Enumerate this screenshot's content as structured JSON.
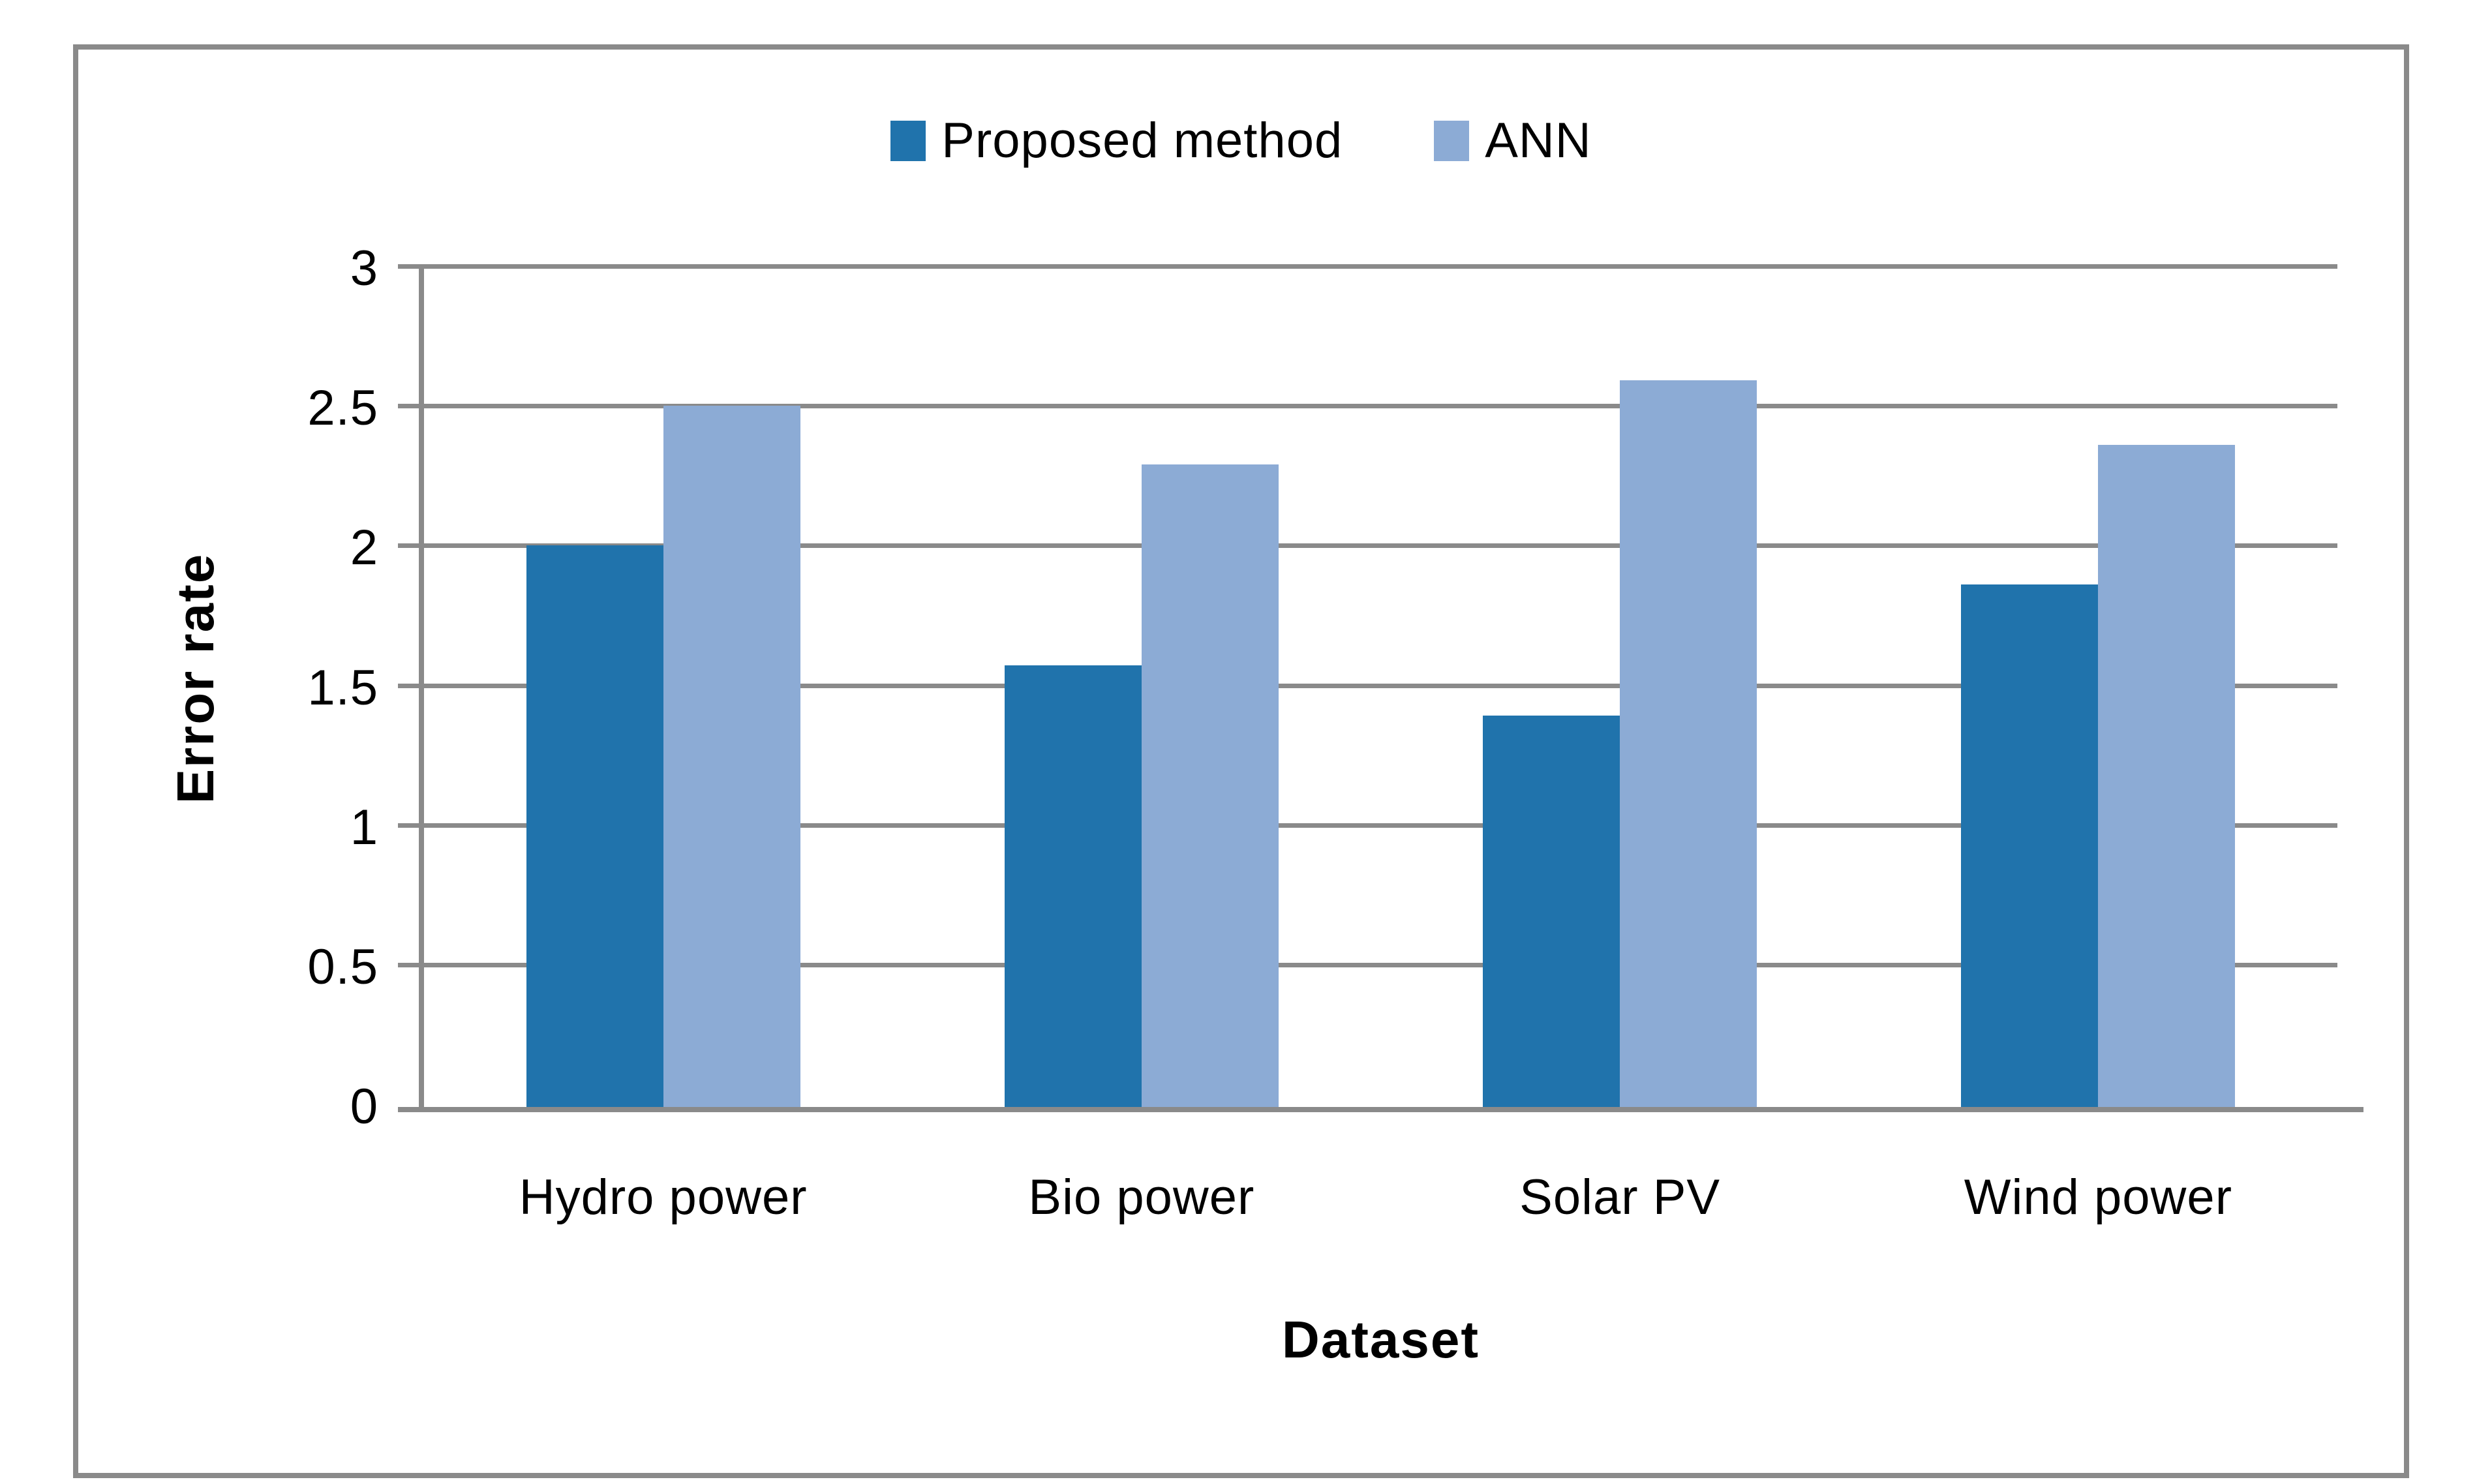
{
  "chart_data": {
    "type": "bar",
    "title": "",
    "categories": [
      "Hydro power",
      "Bio power",
      "Solar PV",
      "Wind power"
    ],
    "series": [
      {
        "name": "Proposed method",
        "color": "#2073AC",
        "values": [
          2.01,
          1.58,
          1.4,
          1.87
        ]
      },
      {
        "name": "ANN",
        "color": "#8CABD5",
        "values": [
          2.51,
          2.3,
          2.6,
          2.37
        ]
      }
    ],
    "xlabel": "Dataset",
    "ylabel": "Error rate",
    "ylim": [
      0,
      3
    ],
    "ytick_step": 0.5,
    "yticks": [
      "0",
      "0.5",
      "1",
      "1.5",
      "2",
      "2.5",
      "3"
    ],
    "grid": true,
    "legend_position": "top-center"
  },
  "colors": {
    "background": "#FFFFFF",
    "frame_border": "#8A8A8A",
    "gridline": "#8A8A8A",
    "axis": "#8A8A8A",
    "text": "#000000"
  }
}
